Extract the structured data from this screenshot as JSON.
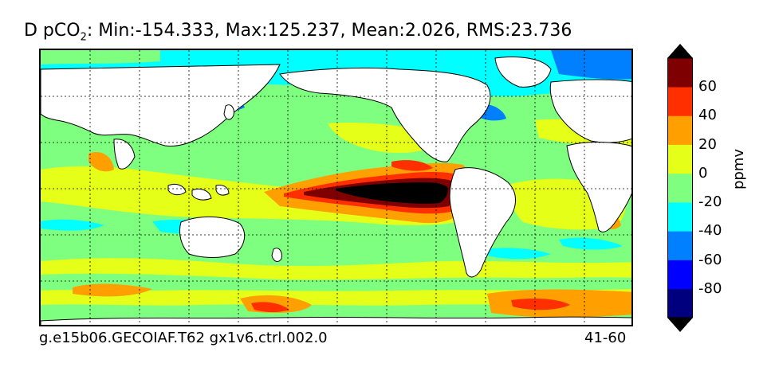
{
  "title": {
    "prefix": "D pCO",
    "subscript": "2",
    "suffix": ": Min:-154.333, Max:125.237, Mean:2.026, RMS:23.736"
  },
  "footer": {
    "left": "g.e15b06.GECOIAF.T62 gx1v6.ctrl.002.0",
    "right": "41-60"
  },
  "colorbar": {
    "label": "ppmv",
    "ticks": [
      "60",
      "40",
      "20",
      "0",
      "-20",
      "-40",
      "-60",
      "-80"
    ],
    "levels": [
      -100,
      -80,
      -60,
      -40,
      -20,
      0,
      20,
      40,
      60,
      80
    ],
    "colors": [
      "#00007f",
      "#0000ff",
      "#007fff",
      "#00ffff",
      "#7fff7f",
      "#e5ff18",
      "#ff9f00",
      "#ff2f00",
      "#7f0000"
    ],
    "under_color": "#000000",
    "over_color": "#000000",
    "extend": "both"
  },
  "map": {
    "projection": "cylindrical",
    "land_color": "#ffffff",
    "coastline_color": "#000000",
    "gridlines": "dotted"
  }
}
